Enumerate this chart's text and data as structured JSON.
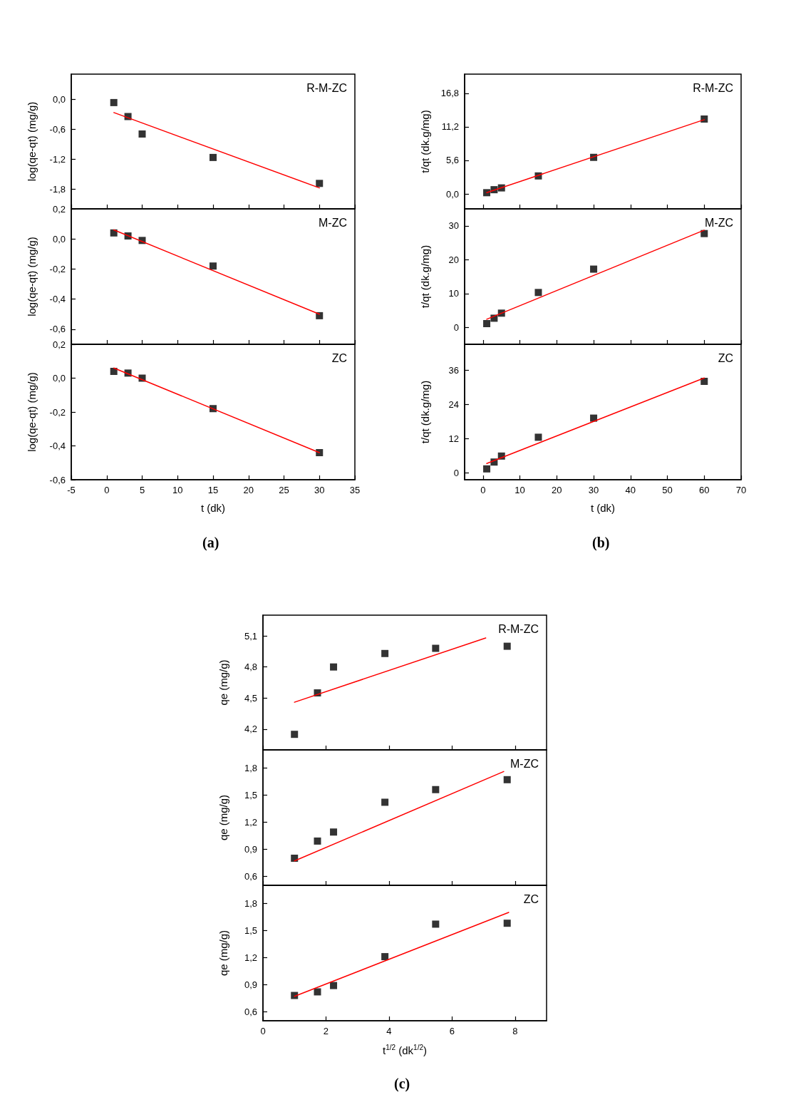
{
  "chart_data": [
    {
      "type": "scatter",
      "title": "R-M-ZC",
      "ylabel": "log(qe-qt) (mg/g)",
      "xlim": [
        -5,
        35
      ],
      "xticks": [
        -5,
        0,
        5,
        10,
        15,
        20,
        25,
        30,
        35
      ],
      "ylim": [
        -2.2,
        0.5
      ],
      "yticks": [
        {
          "value": 0,
          "label": "0,0"
        },
        {
          "value": -0.6,
          "label": "-0,6"
        },
        {
          "value": -1.2,
          "label": "-1,2"
        },
        {
          "value": -1.8,
          "label": "-1,8"
        }
      ],
      "tick_labels": "y",
      "series": [
        {
          "type": "scatter",
          "color": "#000000",
          "marker": "square",
          "x": [
            1,
            3,
            5,
            15,
            30
          ],
          "values": [
            -0.07,
            -0.35,
            -0.7,
            -1.17,
            -1.69
          ]
        },
        {
          "type": "line",
          "color": "#ff0000",
          "marker": "none",
          "line_style": "solid",
          "x": [
            1,
            30
          ],
          "values": [
            -0.27,
            -1.78
          ]
        }
      ]
    },
    {
      "type": "scatter",
      "title": "M-ZC",
      "ylabel": "log(qe-qt) (mg/g)",
      "xlim": [
        -5,
        35
      ],
      "xticks": [
        -5,
        0,
        5,
        10,
        15,
        20,
        25,
        30,
        35
      ],
      "ylim": [
        -0.7,
        0.2
      ],
      "yticks": [
        {
          "value": 0.2,
          "label": "0,2"
        },
        {
          "value": 0,
          "label": "0,0"
        },
        {
          "value": -0.2,
          "label": "-0,2"
        },
        {
          "value": -0.4,
          "label": "-0,4"
        },
        {
          "value": -0.6,
          "label": "-0,6"
        }
      ],
      "tick_labels": "y",
      "series": [
        {
          "type": "scatter",
          "color": "#000000",
          "marker": "square",
          "x": [
            1,
            3,
            5,
            15,
            30
          ],
          "values": [
            0.04,
            0.02,
            -0.01,
            -0.18,
            -0.51
          ]
        },
        {
          "type": "line",
          "color": "#ff0000",
          "marker": "none",
          "line_style": "solid",
          "x": [
            1,
            30
          ],
          "values": [
            0.06,
            -0.5
          ]
        }
      ]
    },
    {
      "type": "scatter",
      "title": "ZC",
      "xlabel": "t (dk)",
      "ylabel": "log(qe-qt) (mg/g)",
      "annotations": [
        "(a)"
      ],
      "xlim": [
        -5,
        35
      ],
      "xticks": [
        -5,
        0,
        5,
        10,
        15,
        20,
        25,
        30,
        35
      ],
      "ylim": [
        -0.6,
        0.2
      ],
      "yticks": [
        {
          "value": 0.2,
          "label": "0,2"
        },
        {
          "value": 0,
          "label": "0,0"
        },
        {
          "value": -0.2,
          "label": "-0,2"
        },
        {
          "value": -0.4,
          "label": "-0,4"
        },
        {
          "value": -0.6,
          "label": "-0,6"
        }
      ],
      "series": [
        {
          "type": "scatter",
          "color": "#000000",
          "marker": "square",
          "x": [
            1,
            3,
            5,
            15,
            30
          ],
          "values": [
            0.04,
            0.03,
            0,
            -0.18,
            -0.44
          ]
        },
        {
          "type": "line",
          "color": "#ff0000",
          "marker": "none",
          "line_style": "solid",
          "x": [
            1,
            30
          ],
          "values": [
            0.06,
            -0.44
          ]
        }
      ]
    },
    {
      "type": "scatter",
      "title": "R-M-ZC",
      "ylabel": "t/qt (dk.g/mg)",
      "xlim": [
        -5,
        70
      ],
      "xticks": [
        0,
        10,
        20,
        30,
        40,
        50,
        60,
        70
      ],
      "ylim": [
        -2.5,
        20
      ],
      "yticks": [
        {
          "value": 0,
          "label": "0,0"
        },
        {
          "value": 5.6,
          "label": "5,6"
        },
        {
          "value": 11.2,
          "label": "11,2"
        },
        {
          "value": 16.8,
          "label": "16,8"
        }
      ],
      "tick_labels": "y",
      "series": [
        {
          "type": "scatter",
          "color": "#000000",
          "marker": "square",
          "x": [
            1,
            3,
            5,
            15,
            30,
            60
          ],
          "values": [
            0.2,
            0.7,
            1.0,
            3.0,
            6.1,
            12.5
          ]
        },
        {
          "type": "line",
          "color": "#ff0000",
          "marker": "none",
          "line_style": "solid",
          "x": [
            1,
            60
          ],
          "values": [
            0.2,
            12.4
          ]
        }
      ]
    },
    {
      "type": "scatter",
      "title": "M-ZC",
      "ylabel": "t/qt (dk.g/mg)",
      "xlim": [
        -5,
        70
      ],
      "xticks": [
        0,
        10,
        20,
        30,
        40,
        50,
        60,
        70
      ],
      "ylim": [
        -5,
        35
      ],
      "yticks": [
        0,
        10,
        20,
        30
      ],
      "tick_labels": "y",
      "series": [
        {
          "type": "scatter",
          "color": "#000000",
          "marker": "square",
          "x": [
            1,
            3,
            5,
            15,
            30,
            60
          ],
          "values": [
            1.1,
            2.7,
            4.2,
            10.3,
            17.2,
            27.7
          ]
        },
        {
          "type": "line",
          "color": "#ff0000",
          "marker": "none",
          "line_style": "solid",
          "x": [
            1,
            60
          ],
          "values": [
            2.4,
            28.7
          ]
        }
      ]
    },
    {
      "type": "scatter",
      "title": "ZC",
      "xlabel": "t (dk)",
      "ylabel": "t/qt (dk.g/mg)",
      "annotations": [
        "(b)"
      ],
      "xlim": [
        -5,
        70
      ],
      "xticks": [
        0,
        10,
        20,
        30,
        40,
        50,
        60,
        70
      ],
      "ylim": [
        -2.5,
        45
      ],
      "yticks": [
        0,
        12,
        24,
        36
      ],
      "series": [
        {
          "type": "scatter",
          "color": "#000000",
          "marker": "square",
          "x": [
            1,
            3,
            5,
            15,
            30,
            60
          ],
          "values": [
            1.3,
            3.7,
            5.8,
            12.4,
            19.1,
            32.0
          ]
        },
        {
          "type": "line",
          "color": "#ff0000",
          "marker": "none",
          "line_style": "solid",
          "x": [
            1,
            60
          ],
          "values": [
            3.2,
            33.2
          ]
        }
      ]
    },
    {
      "type": "scatter",
      "title": "R-M-ZC",
      "ylabel": "qe (mg/g)",
      "xlim": [
        0,
        9
      ],
      "xticks": [
        0,
        2,
        4,
        6,
        8
      ],
      "ylim": [
        4.0,
        5.3
      ],
      "yticks": [
        {
          "value": 4.2,
          "label": "4,2"
        },
        {
          "value": 4.5,
          "label": "4,5"
        },
        {
          "value": 4.8,
          "label": "4,8"
        },
        {
          "value": 5.1,
          "label": "5,1"
        }
      ],
      "tick_labels": "y",
      "series": [
        {
          "type": "scatter",
          "color": "#000000",
          "marker": "square",
          "x": [
            1,
            1.73,
            2.24,
            3.87,
            5.48,
            7.75
          ],
          "values": [
            4.15,
            4.55,
            4.8,
            4.93,
            4.98,
            5.0
          ]
        },
        {
          "type": "line",
          "color": "#ff0000",
          "marker": "none",
          "line_style": "solid",
          "x": [
            1,
            7.07
          ],
          "values": [
            4.46,
            5.08
          ]
        }
      ]
    },
    {
      "type": "scatter",
      "title": "M-ZC",
      "ylabel": "qe (mg/g)",
      "xlim": [
        0,
        9
      ],
      "xticks": [
        0,
        2,
        4,
        6,
        8
      ],
      "ylim": [
        0.5,
        2.0
      ],
      "yticks": [
        {
          "value": 0.6,
          "label": "0,6"
        },
        {
          "value": 0.9,
          "label": "0,9"
        },
        {
          "value": 1.2,
          "label": "1,2"
        },
        {
          "value": 1.5,
          "label": "1,5"
        },
        {
          "value": 1.8,
          "label": "1,8"
        }
      ],
      "tick_labels": "y",
      "series": [
        {
          "type": "scatter",
          "color": "#000000",
          "marker": "square",
          "x": [
            1,
            1.73,
            2.24,
            3.87,
            5.48,
            7.75
          ],
          "values": [
            0.8,
            0.99,
            1.09,
            1.42,
            1.56,
            1.67
          ]
        },
        {
          "type": "line",
          "color": "#ff0000",
          "marker": "none",
          "line_style": "solid",
          "x": [
            1,
            7.64
          ],
          "values": [
            0.77,
            1.76
          ]
        }
      ]
    },
    {
      "type": "scatter",
      "title": "ZC",
      "xlabel": "t$^{1/2}$ (dk$^{1/2}$)",
      "ylabel": "qe (mg/g)",
      "annotations": [
        "(c)"
      ],
      "xlim": [
        0,
        9
      ],
      "xticks": [
        0,
        2,
        4,
        6,
        8
      ],
      "ylim": [
        0.5,
        2.0
      ],
      "yticks": [
        {
          "value": 0.6,
          "label": "0,6"
        },
        {
          "value": 0.9,
          "label": "0,9"
        },
        {
          "value": 1.2,
          "label": "1,2"
        },
        {
          "value": 1.5,
          "label": "1,5"
        },
        {
          "value": 1.8,
          "label": "1,8"
        }
      ],
      "series": [
        {
          "type": "scatter",
          "color": "#000000",
          "marker": "square",
          "x": [
            1,
            1.73,
            2.24,
            3.87,
            5.48,
            7.75
          ],
          "values": [
            0.78,
            0.82,
            0.89,
            1.21,
            1.57,
            1.58
          ]
        },
        {
          "type": "line",
          "color": "#ff0000",
          "marker": "none",
          "line_style": "solid",
          "x": [
            1,
            7.8
          ],
          "values": [
            0.77,
            1.7
          ]
        }
      ]
    }
  ]
}
